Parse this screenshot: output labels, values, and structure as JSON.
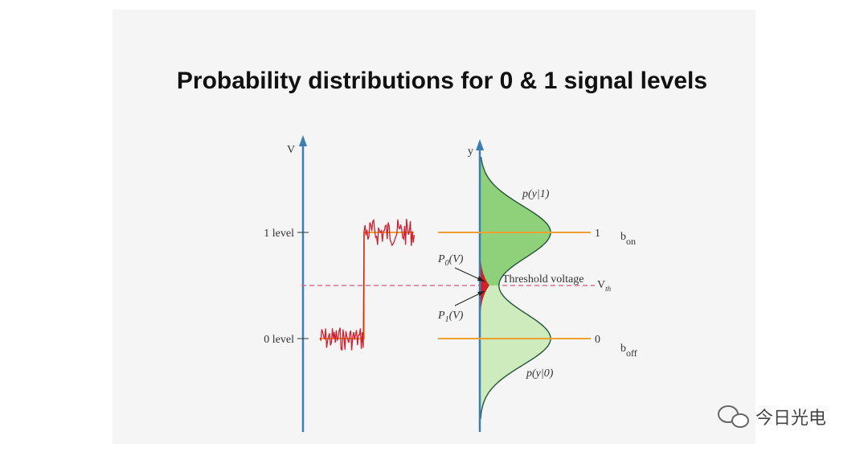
{
  "title": "Probability distributions for 0 & 1 signal levels",
  "left_axis": {
    "label": "V",
    "levels": [
      "1 level",
      "0 level"
    ]
  },
  "right_axis": {
    "label": "y"
  },
  "curves": {
    "upper": "p(y|1)",
    "lower": "p(y|0)"
  },
  "lines": {
    "upper": "1",
    "lower": "0"
  },
  "levels": {
    "on": {
      "base": "b",
      "sub": "on"
    },
    "off": {
      "base": "b",
      "sub": "off"
    }
  },
  "error": {
    "p0": {
      "base": "P",
      "sub": "0",
      "rest": "(V)"
    },
    "p1": {
      "base": "P",
      "sub": "1",
      "rest": "(V)"
    }
  },
  "threshold": {
    "label": "Threshold voltage",
    "symbol": {
      "base": "V",
      "sub": "th"
    }
  },
  "watermark": "今日光电"
}
